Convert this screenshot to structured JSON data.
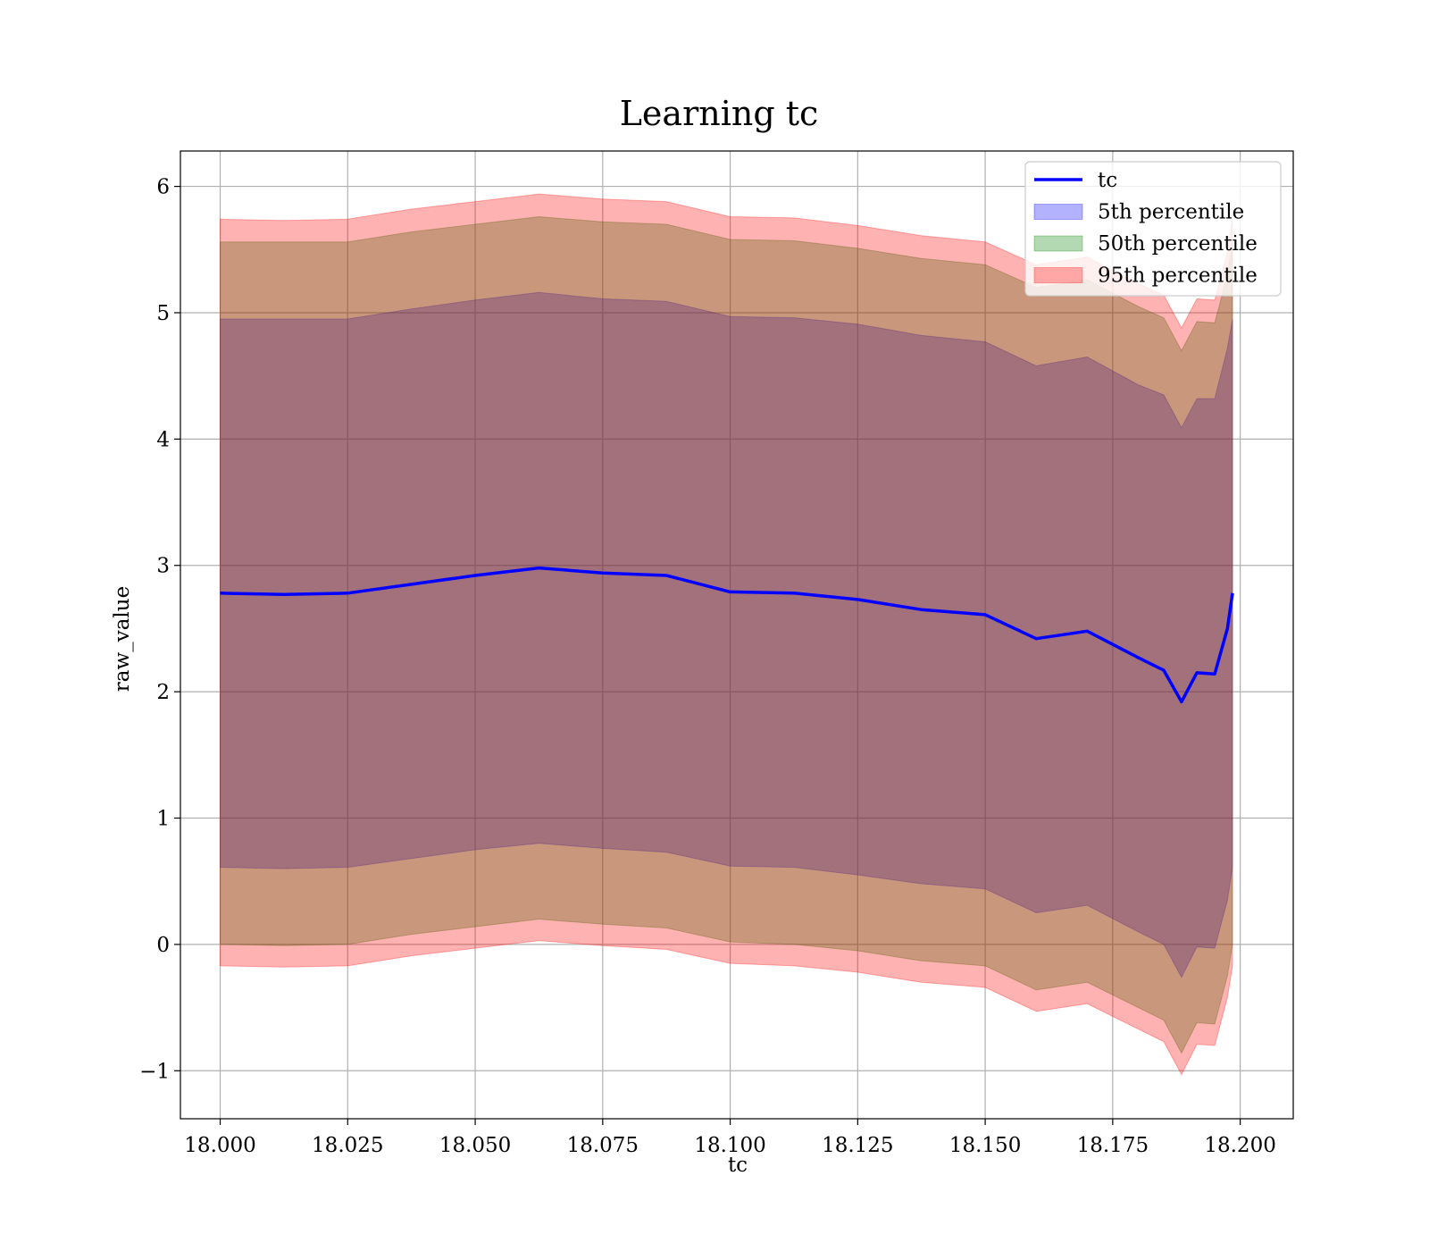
{
  "chart_data": {
    "type": "area",
    "title": "Learning tc",
    "xlabel": "tc",
    "ylabel": "raw_value",
    "xlim": [
      17.9922,
      18.2104
    ],
    "ylim": [
      -1.38,
      6.28
    ],
    "xticks": [
      18.0,
      18.025,
      18.05,
      18.075,
      18.1,
      18.125,
      18.15,
      18.175,
      18.2
    ],
    "xtick_labels": [
      "18.000",
      "18.025",
      "18.050",
      "18.075",
      "18.100",
      "18.125",
      "18.150",
      "18.175",
      "18.200"
    ],
    "yticks": [
      -1,
      0,
      1,
      2,
      3,
      4,
      5,
      6
    ],
    "ytick_labels": [
      "−1",
      "0",
      "1",
      "2",
      "3",
      "4",
      "5",
      "6"
    ],
    "grid": true,
    "legend_position": "top-right",
    "x": [
      18.0,
      18.0125,
      18.025,
      18.0375,
      18.05,
      18.0625,
      18.075,
      18.0875,
      18.1,
      18.1125,
      18.125,
      18.1375,
      18.15,
      18.16,
      18.17,
      18.18,
      18.185,
      18.1885,
      18.1915,
      18.195,
      18.1975,
      18.1985
    ],
    "series": [
      {
        "name": "tc",
        "kind": "line",
        "color": "#0000ff",
        "values": [
          2.78,
          2.77,
          2.78,
          2.85,
          2.92,
          2.98,
          2.94,
          2.92,
          2.79,
          2.78,
          2.73,
          2.65,
          2.61,
          2.42,
          2.48,
          2.27,
          2.17,
          1.92,
          2.15,
          2.14,
          2.5,
          2.78
        ]
      },
      {
        "name": "5th percentile",
        "kind": "band",
        "color": "#0000ff",
        "upper": [
          4.95,
          4.95,
          4.95,
          5.03,
          5.1,
          5.16,
          5.11,
          5.09,
          4.97,
          4.96,
          4.91,
          4.82,
          4.77,
          4.58,
          4.65,
          4.43,
          4.35,
          4.09,
          4.32,
          4.32,
          4.72,
          4.95
        ],
        "lower": [
          0.61,
          0.6,
          0.61,
          0.68,
          0.75,
          0.8,
          0.76,
          0.73,
          0.62,
          0.61,
          0.55,
          0.48,
          0.44,
          0.25,
          0.31,
          0.1,
          0.0,
          -0.26,
          -0.02,
          -0.03,
          0.35,
          0.61
        ]
      },
      {
        "name": "50th percentile",
        "kind": "band",
        "color": "#008000",
        "upper": [
          5.56,
          5.56,
          5.56,
          5.64,
          5.7,
          5.76,
          5.72,
          5.7,
          5.58,
          5.57,
          5.51,
          5.43,
          5.38,
          5.2,
          5.26,
          5.05,
          4.96,
          4.7,
          4.93,
          4.92,
          5.3,
          5.56
        ],
        "lower": [
          0.0,
          -0.01,
          0.0,
          0.08,
          0.14,
          0.2,
          0.16,
          0.13,
          0.02,
          0.0,
          -0.05,
          -0.13,
          -0.17,
          -0.36,
          -0.3,
          -0.5,
          -0.6,
          -0.86,
          -0.62,
          -0.63,
          -0.25,
          0.0
        ]
      },
      {
        "name": "95th percentile",
        "kind": "band",
        "color": "#ff0000",
        "upper": [
          5.74,
          5.73,
          5.74,
          5.82,
          5.88,
          5.94,
          5.9,
          5.88,
          5.76,
          5.75,
          5.69,
          5.61,
          5.56,
          5.38,
          5.44,
          5.23,
          5.14,
          4.88,
          5.11,
          5.1,
          5.48,
          5.74
        ],
        "lower": [
          -0.17,
          -0.18,
          -0.17,
          -0.09,
          -0.03,
          0.03,
          -0.01,
          -0.04,
          -0.15,
          -0.17,
          -0.22,
          -0.3,
          -0.34,
          -0.53,
          -0.47,
          -0.67,
          -0.77,
          -1.03,
          -0.79,
          -0.8,
          -0.42,
          -0.17
        ]
      }
    ]
  }
}
